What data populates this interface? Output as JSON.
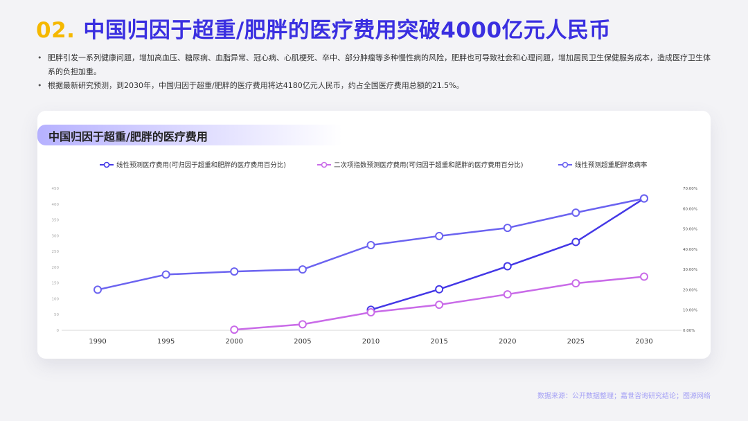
{
  "header": {
    "number": "02.",
    "title": "中国归因于超重/肥胖的医疗费用突破4000亿元人民币"
  },
  "bullets": [
    "肥胖引发一系列健康问题，增加高血压、糖尿病、血脂异常、冠心病、心肌梗死、卒中、部分肿瘤等多种慢性病的风险，肥胖也可导致社会和心理问题，增加居民卫生保健服务成本，造成医疗卫生体系的负担加重。",
    "根据最新研究预测，到2030年，中国归因于超重/肥胖的医疗费用将达4180亿元人民币，约占全国医疗费用总额的21.5%。"
  ],
  "card": {
    "title": "中国归因于超重/肥胖的医疗费用"
  },
  "source": "数据来源：公开数据整理；嘉世咨询研究结论；图源网络",
  "chart_data": {
    "type": "line",
    "x": [
      1990,
      1995,
      2000,
      2005,
      2010,
      2015,
      2020,
      2025,
      2030
    ],
    "y_left": {
      "ticks": [
        0,
        50,
        100,
        150,
        200,
        250,
        300,
        350,
        400,
        450
      ],
      "range": [
        0,
        450
      ]
    },
    "y_right": {
      "ticks": [
        "0.00%",
        "10.00%",
        "20.00%",
        "30.00%",
        "40.00%",
        "50.00%",
        "60.00%",
        "70.00%"
      ],
      "range": [
        0,
        70
      ]
    },
    "legend_position": "top",
    "series": [
      {
        "name": "线性预测医疗费用(可归因于超重和肥胖的医疗费用百分比)",
        "axis": "left",
        "color": "#4438e6",
        "values": [
          null,
          null,
          null,
          null,
          65,
          130,
          203,
          280,
          418
        ]
      },
      {
        "name": "二次项指数预测医疗费用(可归因于超重和肥胖的医疗费用百分比)",
        "axis": "left",
        "color": "#c96be8",
        "values": [
          null,
          null,
          2,
          19,
          57,
          81,
          114,
          149,
          170
        ]
      },
      {
        "name": "线性预测超重肥胖患病率",
        "axis": "right",
        "color": "#6b63f0",
        "values": [
          20,
          27.5,
          29,
          30,
          42,
          46.5,
          50.5,
          58,
          65
        ]
      }
    ]
  }
}
